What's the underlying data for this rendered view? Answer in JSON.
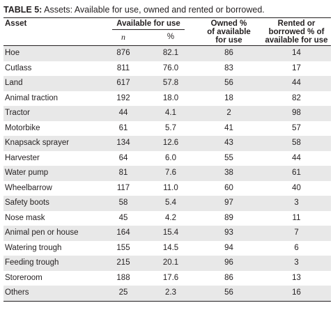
{
  "caption": {
    "label": "TABLE 5:",
    "text": "Assets: Available for use, owned and rented or borrowed."
  },
  "headers": {
    "asset": "Asset",
    "available": "Available for use",
    "n": "n",
    "pct": "%",
    "owned_line1": "Owned %",
    "owned_line2": "of available",
    "owned_line3": "for use",
    "rented_line1": "Rented or",
    "rented_line2": "borrowed % of",
    "rented_line3": "available for use"
  },
  "rows": [
    {
      "asset": "Hoe",
      "n": "876",
      "pct": "82.1",
      "owned": "86",
      "rented": "14"
    },
    {
      "asset": "Cutlass",
      "n": "811",
      "pct": "76.0",
      "owned": "83",
      "rented": "17"
    },
    {
      "asset": "Land",
      "n": "617",
      "pct": "57.8",
      "owned": "56",
      "rented": "44"
    },
    {
      "asset": "Animal traction",
      "n": "192",
      "pct": "18.0",
      "owned": "18",
      "rented": "82"
    },
    {
      "asset": "Tractor",
      "n": "44",
      "pct": "4.1",
      "owned": "2",
      "rented": "98"
    },
    {
      "asset": "Motorbike",
      "n": "61",
      "pct": "5.7",
      "owned": "41",
      "rented": "57"
    },
    {
      "asset": "Knapsack sprayer",
      "n": "134",
      "pct": "12.6",
      "owned": "43",
      "rented": "58"
    },
    {
      "asset": "Harvester",
      "n": "64",
      "pct": "6.0",
      "owned": "55",
      "rented": "44"
    },
    {
      "asset": "Water pump",
      "n": "81",
      "pct": "7.6",
      "owned": "38",
      "rented": "61"
    },
    {
      "asset": "Wheelbarrow",
      "n": "117",
      "pct": "11.0",
      "owned": "60",
      "rented": "40"
    },
    {
      "asset": "Safety boots",
      "n": "58",
      "pct": "5.4",
      "owned": "97",
      "rented": "3"
    },
    {
      "asset": "Nose mask",
      "n": "45",
      "pct": "4.2",
      "owned": "89",
      "rented": "11"
    },
    {
      "asset": "Animal pen or house",
      "n": "164",
      "pct": "15.4",
      "owned": "93",
      "rented": "7"
    },
    {
      "asset": "Watering trough",
      "n": "155",
      "pct": "14.5",
      "owned": "94",
      "rented": "6"
    },
    {
      "asset": "Feeding trough",
      "n": "215",
      "pct": "20.1",
      "owned": "96",
      "rented": "3"
    },
    {
      "asset": "Storeroom",
      "n": "188",
      "pct": "17.6",
      "owned": "86",
      "rented": "13"
    },
    {
      "asset": "Others",
      "n": "25",
      "pct": "2.3",
      "owned": "56",
      "rented": "16"
    }
  ]
}
